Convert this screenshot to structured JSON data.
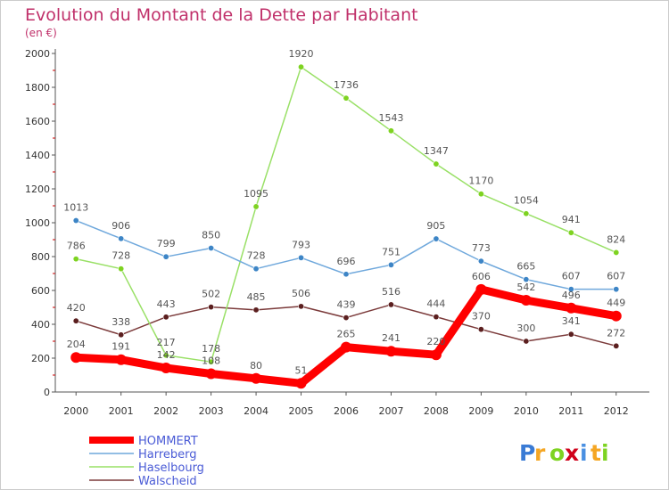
{
  "chart_data": {
    "type": "line",
    "title": "Evolution du Montant de la Dette par Habitant",
    "subtitle": "(en €)",
    "xlabel": "",
    "ylabel": "",
    "categories": [
      "2000",
      "2001",
      "2002",
      "2003",
      "2004",
      "2005",
      "2006",
      "2007",
      "2008",
      "2009",
      "2010",
      "2011",
      "2012"
    ],
    "ylim": [
      0,
      2000
    ],
    "yticks": [
      0,
      200,
      400,
      600,
      800,
      1000,
      1200,
      1400,
      1600,
      1800,
      2000
    ],
    "grid": false,
    "legend_position": "bottom-left",
    "series": [
      {
        "name": "HOMMERT",
        "color": "#ff0000",
        "values": [
          204,
          191,
          142,
          108,
          80,
          51,
          265,
          241,
          220,
          606,
          542,
          496,
          449
        ]
      },
      {
        "name": "Harreberg",
        "color": "#6fa8dc",
        "point_color": "#3d85c6",
        "values": [
          1013,
          906,
          799,
          850,
          728,
          793,
          696,
          751,
          905,
          773,
          665,
          607,
          607
        ]
      },
      {
        "name": "Haselbourg",
        "color": "#99e066",
        "point_color": "#7ed321",
        "values": [
          786,
          728,
          217,
          178,
          1095,
          1920,
          1736,
          1543,
          1347,
          1170,
          1054,
          941,
          824
        ]
      },
      {
        "name": "Walscheid",
        "color": "#7b3a3a",
        "point_color": "#5b1f1f",
        "values": [
          420,
          338,
          443,
          502,
          485,
          506,
          439,
          516,
          444,
          370,
          300,
          341,
          272
        ]
      }
    ],
    "data_labels": {
      "HOMMERT": [
        "204",
        "191",
        "142",
        "108",
        "80",
        "51",
        "265",
        "241",
        "220",
        "606",
        "542",
        "496",
        "449"
      ],
      "Harreberg": [
        "1013",
        "906",
        "799",
        "850",
        "728",
        "793",
        "696",
        "751",
        "905",
        "773",
        "665",
        "607",
        "607"
      ],
      "Haselbourg": [
        "786",
        "728",
        "217",
        "178",
        "1095",
        "1920",
        "1736",
        "1543",
        "1347",
        "1170",
        "1054",
        "941",
        "824"
      ],
      "Walscheid": [
        "420",
        "338",
        "443",
        "502",
        "485",
        "506",
        "439",
        "516",
        "444",
        "370",
        "300",
        "341",
        "272"
      ]
    }
  },
  "brand": {
    "text": "Proxiti"
  },
  "colors": {
    "title": "#c0306a",
    "axis": "#555555",
    "tick_text": "#333333",
    "legend_text": "#4a5bd6",
    "label_text": "#555555",
    "background": "#ffffff"
  }
}
